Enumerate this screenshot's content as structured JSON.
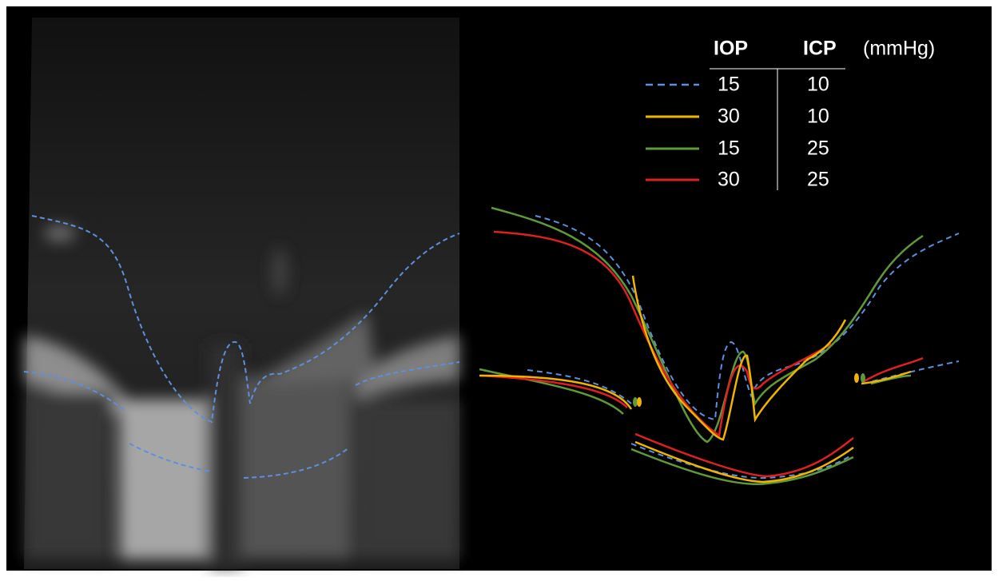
{
  "legend": {
    "headers": [
      "IOP",
      "ICP",
      "(mmHg)"
    ],
    "rows": [
      [
        15,
        10
      ],
      [
        30,
        10
      ],
      [
        15,
        25
      ],
      [
        30,
        25
      ]
    ]
  }
}
